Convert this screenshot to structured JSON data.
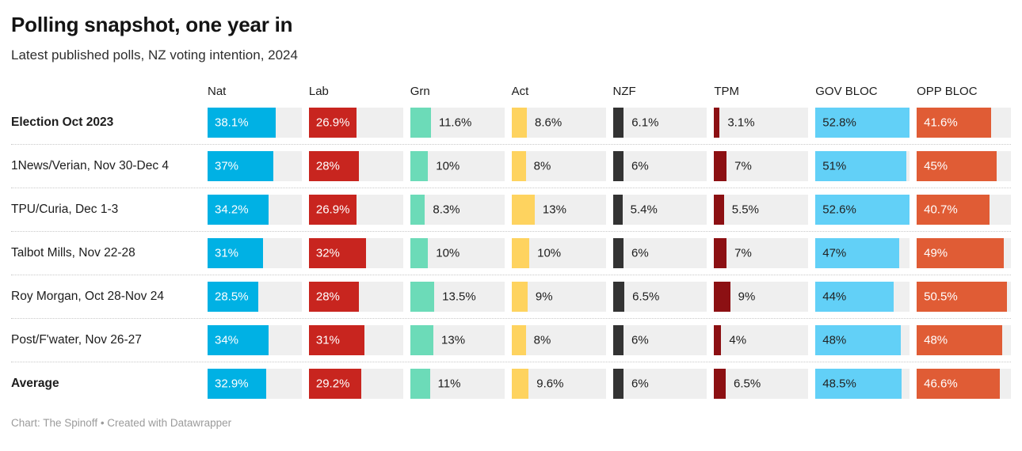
{
  "header": {
    "title": "Polling snapshot, one year in",
    "subtitle": "Latest published polls, NZ voting intention, 2024"
  },
  "footer": {
    "text": "Chart: The Spinoff • Created with Datawrapper"
  },
  "colors": {
    "track": "#efefef",
    "row_separator": "#c9c9c9",
    "outside_label_text": "#1d1d1d",
    "footer_text": "#9b9b9b"
  },
  "chart_data": {
    "type": "table",
    "title": "Polling snapshot, one year in",
    "subtitle": "Latest published polls, NZ voting intention, 2024",
    "bar_scale_max": 52.8,
    "columns": [
      {
        "label": "Nat",
        "color": "#00b1e4",
        "label_inside": true,
        "inside_text_color": "#ffffff"
      },
      {
        "label": "Lab",
        "color": "#c8251f",
        "label_inside": true,
        "inside_text_color": "#ffffff"
      },
      {
        "label": "Grn",
        "color": "#6cdbb8",
        "label_inside": false,
        "inside_text_color": "#1d1d1d"
      },
      {
        "label": "Act",
        "color": "#fed35f",
        "label_inside": false,
        "inside_text_color": "#1d1d1d"
      },
      {
        "label": "NZF",
        "color": "#333333",
        "label_inside": false,
        "inside_text_color": "#ffffff"
      },
      {
        "label": "TPM",
        "color": "#8c1013",
        "label_inside": false,
        "inside_text_color": "#ffffff"
      },
      {
        "label": "GOV BLOC",
        "color": "#62d0f7",
        "label_inside": true,
        "inside_text_color": "#222222"
      },
      {
        "label": "OPP BLOC",
        "color": "#e05c35",
        "label_inside": true,
        "inside_text_color": "#ffffff"
      }
    ],
    "rows": [
      {
        "label": "Election Oct 2023",
        "bold": true,
        "values": [
          38.1,
          26.9,
          11.6,
          8.6,
          6.1,
          3.1,
          52.8,
          41.6
        ],
        "display": [
          "38.1%",
          "26.9%",
          "11.6%",
          "8.6%",
          "6.1%",
          "3.1%",
          "52.8%",
          "41.6%"
        ]
      },
      {
        "label": "1News/Verian, Nov 30-Dec 4",
        "bold": false,
        "values": [
          37,
          28,
          10,
          8,
          6,
          7,
          51,
          45
        ],
        "display": [
          "37%",
          "28%",
          "10%",
          "8%",
          "6%",
          "7%",
          "51%",
          "45%"
        ]
      },
      {
        "label": "TPU/Curia, Dec 1-3",
        "bold": false,
        "values": [
          34.2,
          26.9,
          8.3,
          13,
          5.4,
          5.5,
          52.6,
          40.7
        ],
        "display": [
          "34.2%",
          "26.9%",
          "8.3%",
          "13%",
          "5.4%",
          "5.5%",
          "52.6%",
          "40.7%"
        ]
      },
      {
        "label": "Talbot Mills, Nov 22-28",
        "bold": false,
        "values": [
          31,
          32,
          10,
          10,
          6,
          7,
          47,
          49
        ],
        "display": [
          "31%",
          "32%",
          "10%",
          "10%",
          "6%",
          "7%",
          "47%",
          "49%"
        ]
      },
      {
        "label": "Roy Morgan, Oct 28-Nov 24",
        "bold": false,
        "values": [
          28.5,
          28,
          13.5,
          9,
          6.5,
          9,
          44,
          50.5
        ],
        "display": [
          "28.5%",
          "28%",
          "13.5%",
          "9%",
          "6.5%",
          "9%",
          "44%",
          "50.5%"
        ]
      },
      {
        "label": "Post/F'water, Nov 26-27",
        "bold": false,
        "values": [
          34,
          31,
          13,
          8,
          6,
          4,
          48,
          48
        ],
        "display": [
          "34%",
          "31%",
          "13%",
          "8%",
          "6%",
          "4%",
          "48%",
          "48%"
        ]
      },
      {
        "label": "Average",
        "bold": true,
        "values": [
          32.9,
          29.2,
          11,
          9.6,
          6,
          6.5,
          48.5,
          46.6
        ],
        "display": [
          "32.9%",
          "29.2%",
          "11%",
          "9.6%",
          "6%",
          "6.5%",
          "48.5%",
          "46.6%"
        ]
      }
    ]
  }
}
